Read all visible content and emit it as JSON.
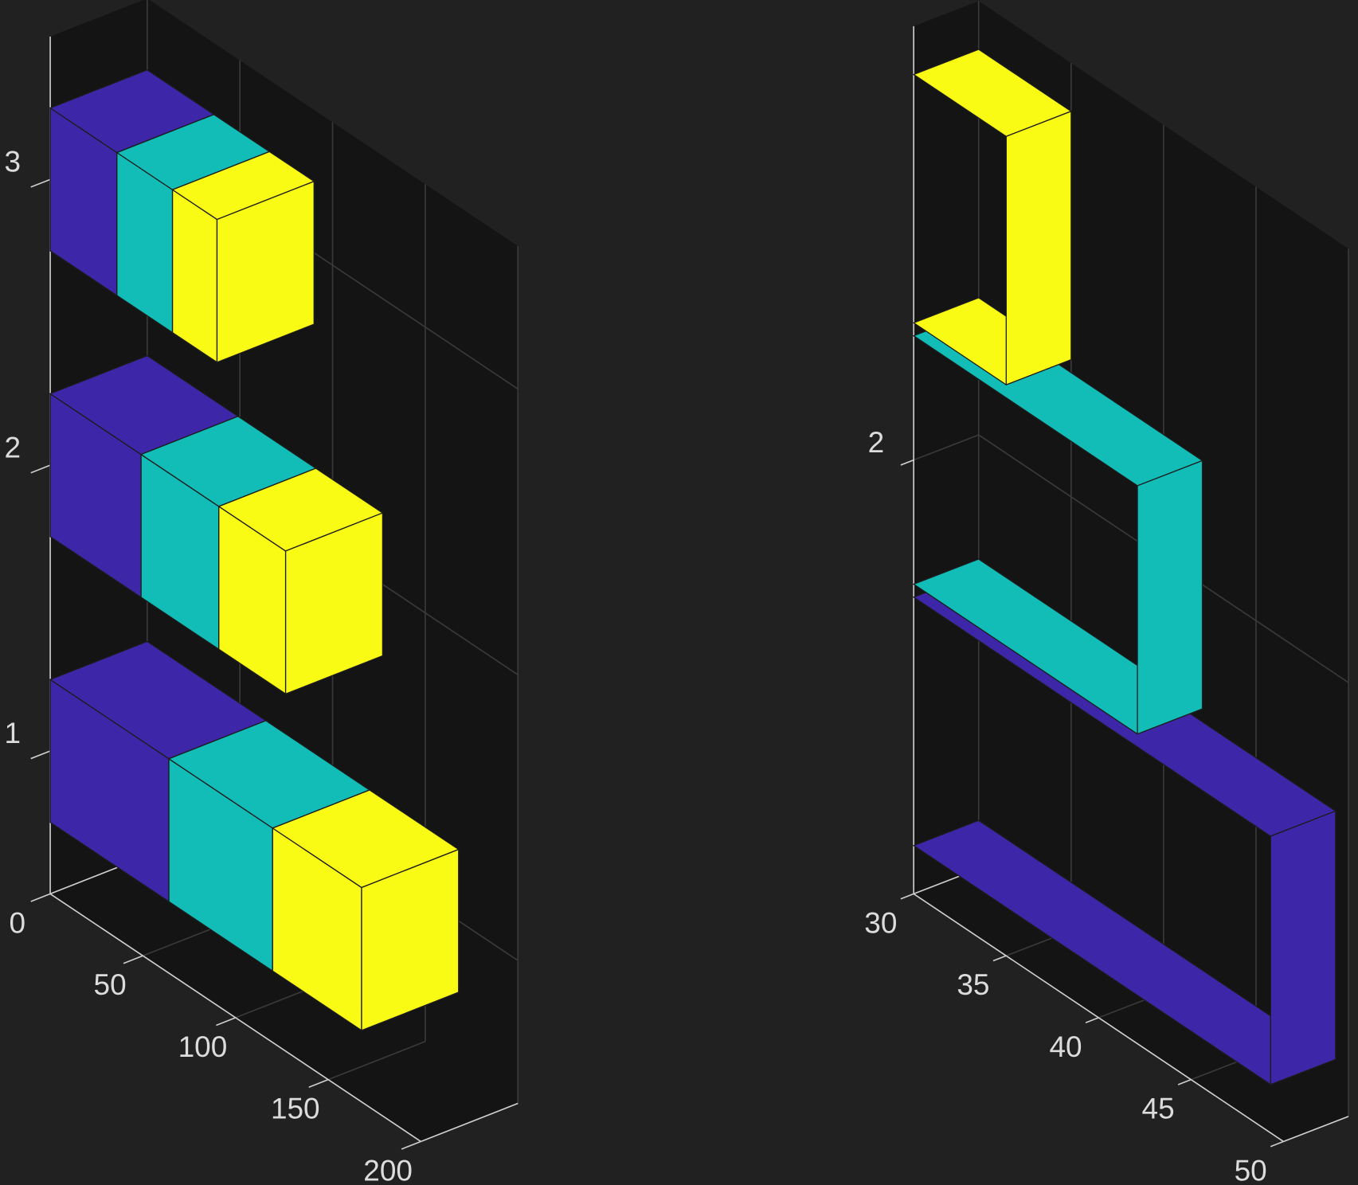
{
  "chart_data": [
    {
      "type": "bar3-stacked",
      "categories": [
        1,
        2,
        3
      ],
      "xlim": [
        0,
        200
      ],
      "xticks": [
        0,
        50,
        100,
        150,
        200
      ],
      "ylim": [
        0.5,
        3.5
      ],
      "yticks": [
        1,
        2,
        3
      ],
      "grid": true,
      "series": [
        {
          "color": "#3e26a8",
          "values": [
            64,
            49,
            36
          ]
        },
        {
          "color": "#12bcb7",
          "values": [
            56,
            42,
            30
          ]
        },
        {
          "color": "#f9fb15",
          "values": [
            48,
            36,
            24
          ]
        }
      ]
    },
    {
      "type": "bar3-clipped",
      "categories": [
        1,
        2,
        3
      ],
      "xlim": [
        30,
        50
      ],
      "xticks": [
        30,
        35,
        40,
        45,
        50
      ],
      "ylim": [
        0.34,
        3.66
      ],
      "yticks": [
        2
      ],
      "grid": true,
      "values": [
        49.3,
        42.1,
        35
      ],
      "colors": [
        "#3e26a8",
        "#12bcb7",
        "#f9fb15"
      ]
    }
  ]
}
